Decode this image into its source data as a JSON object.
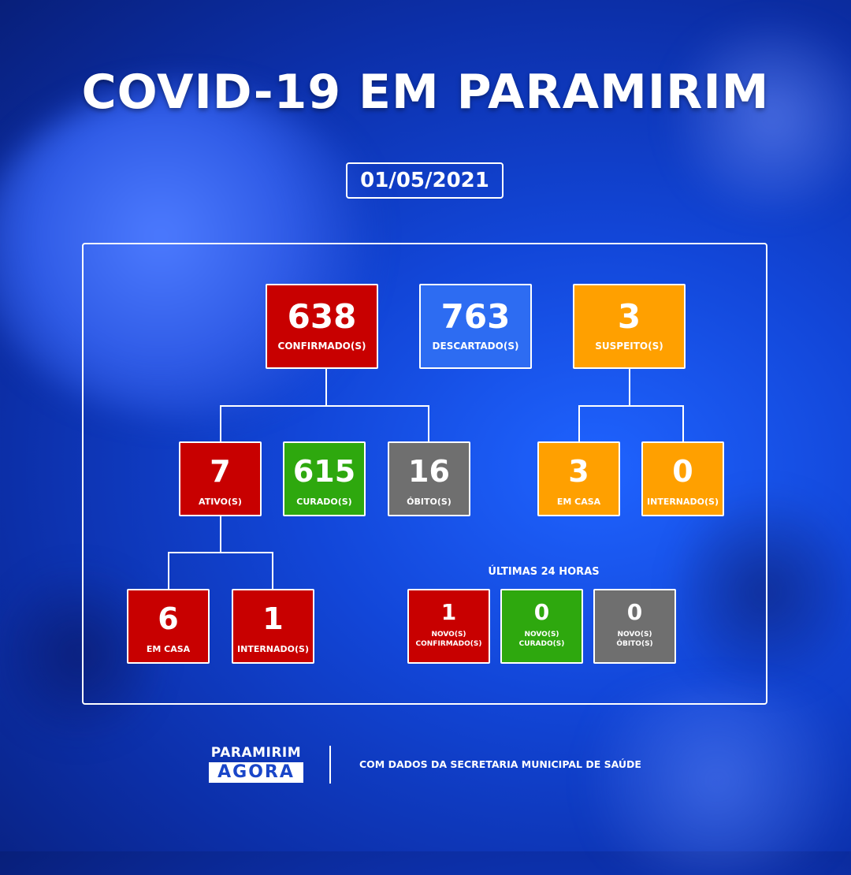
{
  "title": "COVID-19 EM PARAMIRIM",
  "date": "01/05/2021",
  "top": {
    "confirmed": {
      "value": "638",
      "label": "CONFIRMADO(S)"
    },
    "discarded": {
      "value": "763",
      "label": "DESCARTADO(S)"
    },
    "suspected": {
      "value": "3",
      "label": "SUSPEITO(S)"
    }
  },
  "middle": {
    "active": {
      "value": "7",
      "label": "ATIVO(S)"
    },
    "cured": {
      "value": "615",
      "label": "CURADO(S)"
    },
    "deaths": {
      "value": "16",
      "label": "ÓBITO(S)"
    },
    "suspect_home": {
      "value": "3",
      "label": "EM CASA"
    },
    "suspect_hospital": {
      "value": "0",
      "label": "INTERNADO(S)"
    }
  },
  "bottom": {
    "active_home": {
      "value": "6",
      "label": "EM CASA"
    },
    "active_hospital": {
      "value": "1",
      "label": "INTERNADO(S)"
    }
  },
  "last24": {
    "heading": "ÚLTIMAS 24 HORAS",
    "new_confirmed": {
      "value": "1",
      "label_line1": "NOVO(S)",
      "label_line2": "CONFIRMADO(S)"
    },
    "new_cured": {
      "value": "0",
      "label_line1": "NOVO(S)",
      "label_line2": "CURADO(S)"
    },
    "new_deaths": {
      "value": "0",
      "label_line1": "NOVO(S)",
      "label_line2": "ÓBITO(S)"
    }
  },
  "footer": {
    "logo_line1": "PARAMIRIM",
    "logo_line2": "AGORA",
    "source": "COM DADOS DA SECRETARIA MUNICIPAL DE SAÚDE"
  },
  "colors": {
    "confirmed": "#c80000",
    "discarded": "#2d6cf2",
    "suspected": "#ffa000",
    "cured": "#2ea80e",
    "deaths": "#6f6f6f"
  }
}
